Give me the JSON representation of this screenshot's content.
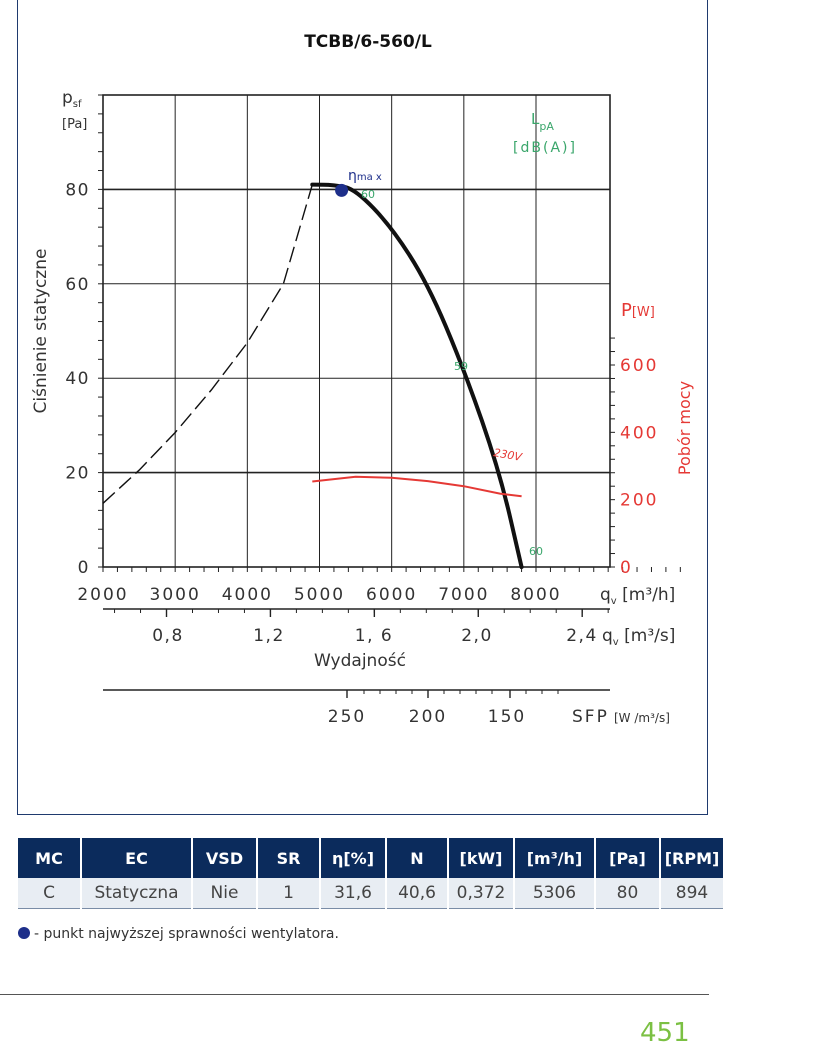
{
  "chart_data": {
    "type": "line",
    "title": "TCBB/6-560/L",
    "ylabel": "Ciśnienie statyczne",
    "ylabel_symbol": "p",
    "ylabel_sub": "sf",
    "yunit": "[Pa]",
    "xlabel": "Wydajność",
    "ylim": [
      0,
      100
    ],
    "xlim": [
      2000,
      10000
    ],
    "x_ticks": [
      "2000",
      "3000",
      "4000",
      "5000",
      "6000",
      "7000",
      "8000"
    ],
    "x_unit_symbol": "q",
    "x_unit_sub": "v",
    "x_unit": "[m³/h]",
    "x2_ticks": [
      "0,8",
      "1,2",
      "1, 6",
      "2,0",
      "2,4"
    ],
    "x2_unit": "[m³/s]",
    "y_ticks": [
      "0",
      "20",
      "40",
      "60",
      "80"
    ],
    "right_axis_title": "Pobór mocy",
    "right_axis_unit_symbol": "P",
    "right_axis_unit": "[W]",
    "right_ticks": [
      "0",
      "200",
      "400",
      "600"
    ],
    "sfp_label": "SFP",
    "sfp_unit": "[W /m³/s]",
    "sfp_ticks": [
      "250",
      "200",
      "150"
    ],
    "lpa_label": "L",
    "lpa_sub": "pA",
    "lpa_unit": "[dB(A)]",
    "eta_label": "η",
    "eta_sub": "ma x",
    "series": [
      {
        "color": "#111111",
        "values": [
          [
            4900,
            81
          ],
          [
            5200,
            81
          ],
          [
            5500,
            80
          ],
          [
            6000,
            72
          ],
          [
            6500,
            60
          ],
          [
            7000,
            42
          ],
          [
            7500,
            20
          ],
          [
            7800,
            0
          ]
        ]
      },
      {
        "color": "#111111",
        "style": "dashed",
        "values": [
          [
            2000,
            13.5
          ],
          [
            2500,
            20.5
          ],
          [
            3000,
            28.5
          ],
          [
            3500,
            37.5
          ],
          [
            4000,
            47.5
          ],
          [
            4500,
            60
          ],
          [
            4900,
            81
          ]
        ]
      },
      {
        "name": "230V",
        "color": "#e53935",
        "axis": "right",
        "values": [
          [
            4900,
            254
          ],
          [
            5500,
            268
          ],
          [
            6000,
            265
          ],
          [
            6500,
            255
          ],
          [
            7000,
            240
          ],
          [
            7500,
            218
          ],
          [
            7800,
            210
          ]
        ]
      }
    ],
    "annotations": [
      {
        "text": "60",
        "x": 5800,
        "y": 78
      },
      {
        "text": "59",
        "x": 7200,
        "y": 40
      },
      {
        "text": "60",
        "x": 7800,
        "y": 3
      }
    ],
    "eta_point": {
      "x": 5306,
      "y": 80
    }
  },
  "table": {
    "headers": [
      "MC",
      "EC",
      "VSD",
      "SR",
      "η[%]",
      "N",
      "[kW]",
      "[m³/h]",
      "[Pa]",
      "[RPM]"
    ],
    "row": [
      "C",
      "Statyczna",
      "Nie",
      "1",
      "31,6",
      "40,6",
      "0,372",
      "5306",
      "80",
      "894"
    ]
  },
  "legend_note": "- punkt najwyższej sprawności wentylatora.",
  "page_number": "451",
  "colors": {
    "header_bg": "#0b2b5c",
    "row_bg": "#e8edf3",
    "frame": "#1f3a6e",
    "lpa_green": "#3aa66b",
    "power_red": "#e53935",
    "eta_blue": "#1e2f8a",
    "page_number": "#7bc043"
  }
}
